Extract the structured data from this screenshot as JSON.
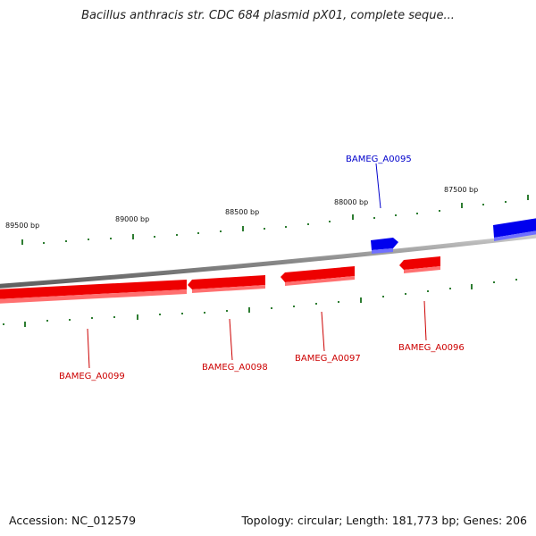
{
  "title": "Bacillus anthracis str. CDC 684 plasmid pX01, complete seque...",
  "footer": {
    "accession": "Accession: NC_012579",
    "summary": "Topology: circular; Length: 181,773 bp; Genes: 206"
  },
  "colors": {
    "forward": "#0000ff",
    "reverse": "#ff0000",
    "tick": "#2e7d32",
    "backbone": "#888888"
  },
  "ticks": [
    {
      "label": "89500 bp"
    },
    {
      "label": "89000 bp"
    },
    {
      "label": "88500 bp"
    },
    {
      "label": "88000 bp"
    },
    {
      "label": "87500 bp"
    }
  ],
  "genes": [
    {
      "name": "BAMEG_A0095",
      "strand": "forward"
    },
    {
      "name": "BAMEG_A0096",
      "strand": "reverse"
    },
    {
      "name": "BAMEG_A0097",
      "strand": "reverse"
    },
    {
      "name": "BAMEG_A0098",
      "strand": "reverse"
    },
    {
      "name": "BAMEG_A0099",
      "strand": "reverse"
    }
  ]
}
